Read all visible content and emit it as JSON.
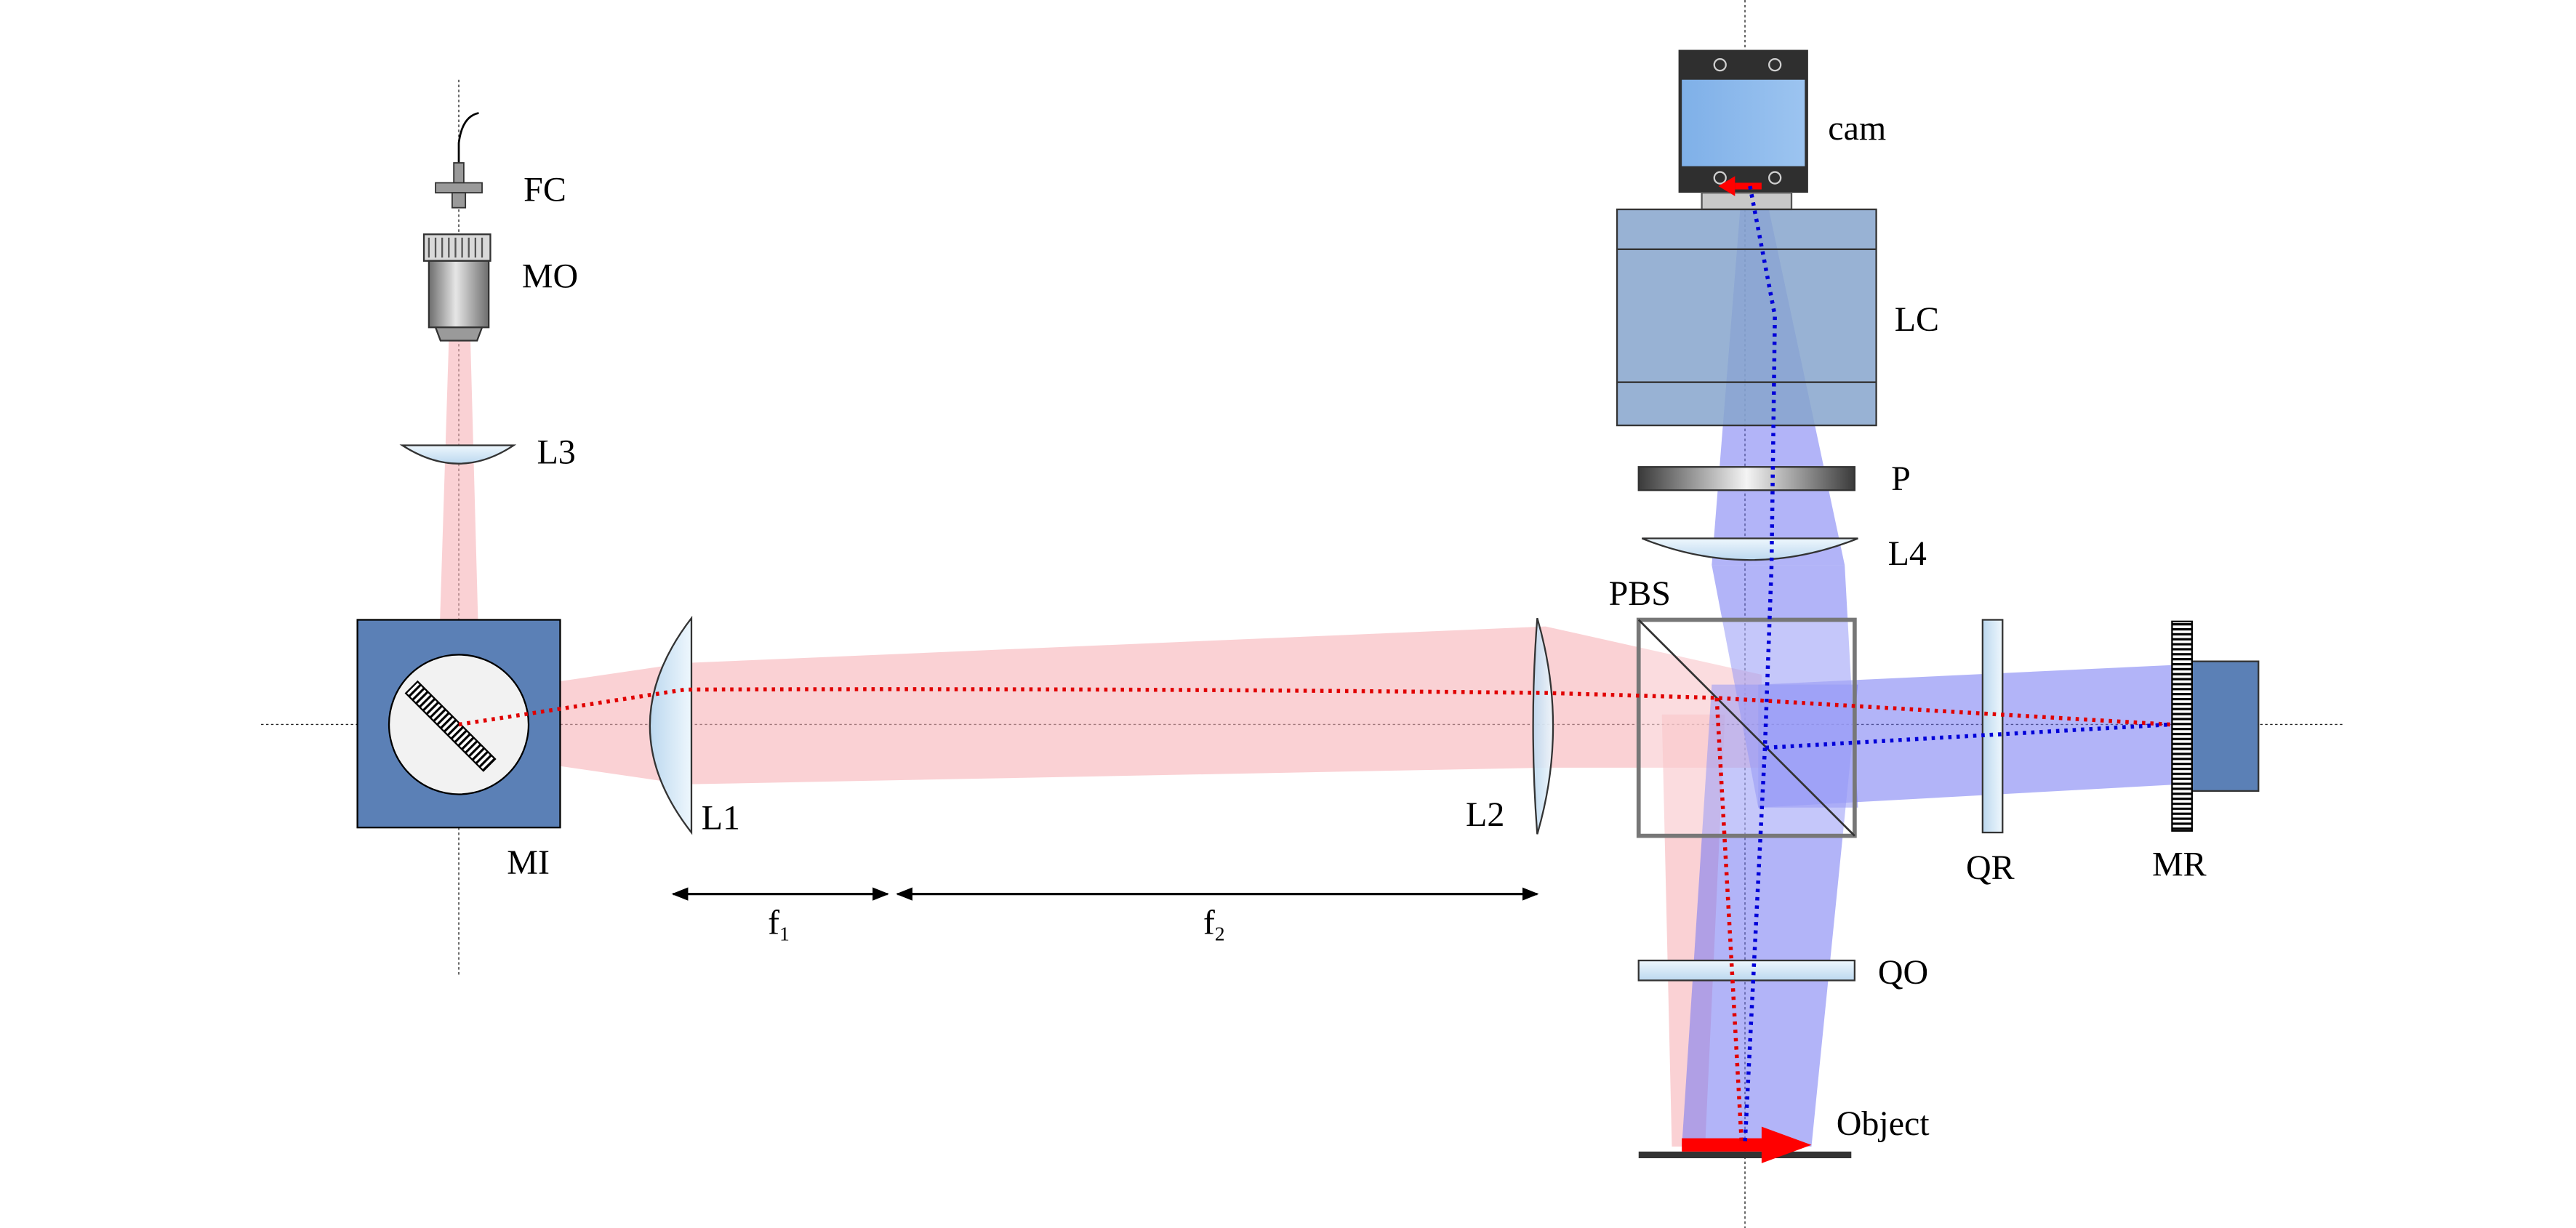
{
  "labels": {
    "fc": "FC",
    "mo": "MO",
    "l3": "L3",
    "mi": "MI",
    "l1": "L1",
    "l2": "L2",
    "f1_base": "f",
    "f1_sub": "1",
    "f2_base": "f",
    "f2_sub": "2",
    "pbs": "PBS",
    "cam": "cam",
    "lc": "LC",
    "p": "P",
    "l4": "L4",
    "qr": "QR",
    "mr": "MR",
    "qo": "QO",
    "object": "Object"
  },
  "colors": {
    "red_beam": "#f6b3b8",
    "blue_beam": "#7277f3",
    "red_ray": "#e00000",
    "blue_ray": "#0000d8",
    "mount_blue": "#5b80b6",
    "lc_blue": "#86a5cc",
    "glass": "#d6e9f7"
  }
}
